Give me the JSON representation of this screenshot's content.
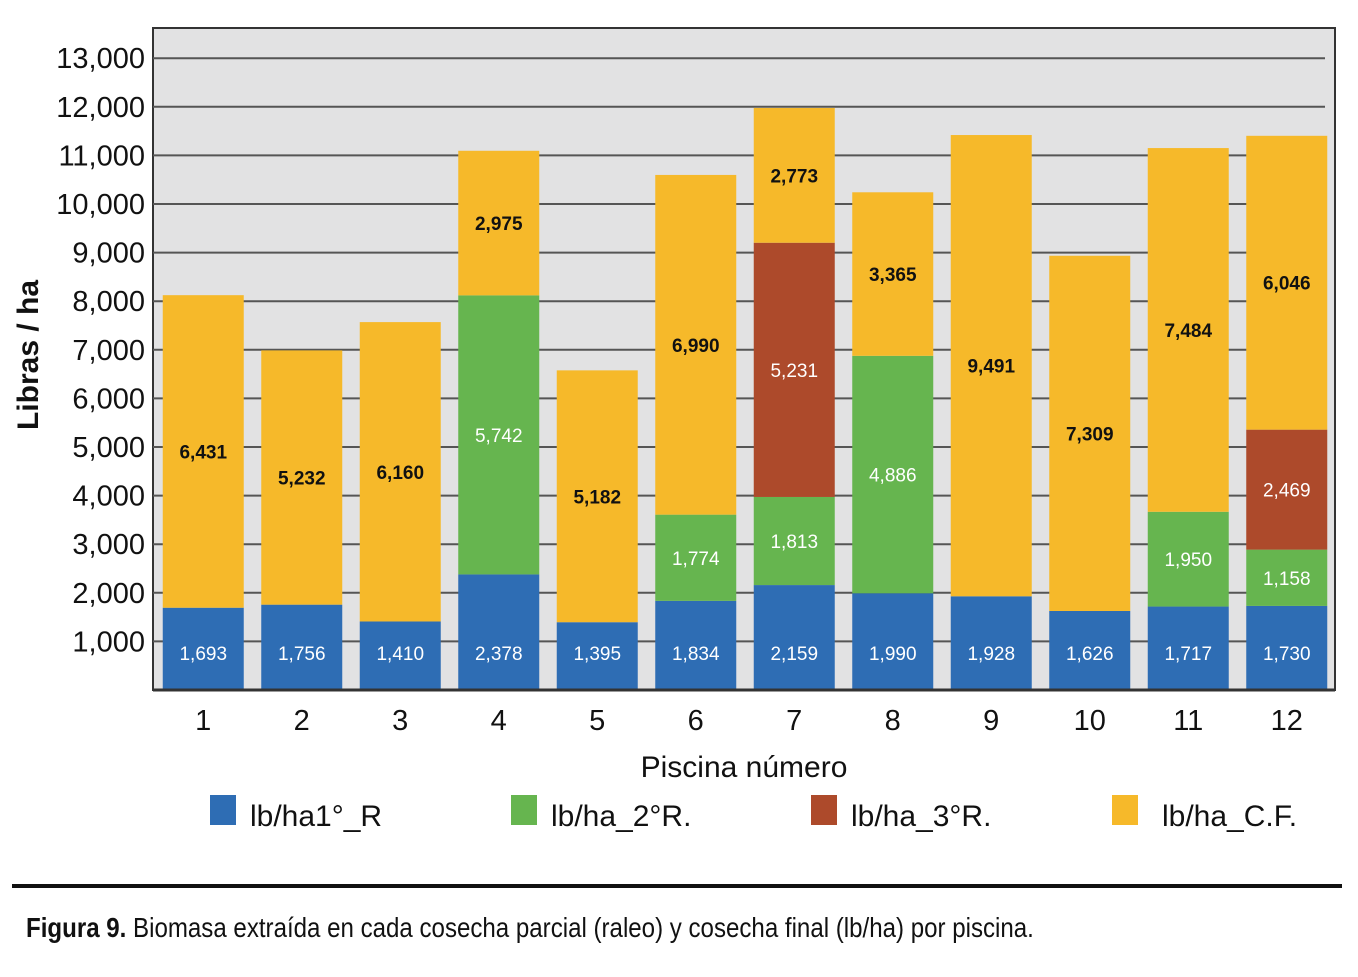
{
  "chart_data": {
    "type": "bar",
    "stacked": true,
    "categories": [
      "1",
      "2",
      "3",
      "4",
      "5",
      "6",
      "7",
      "8",
      "9",
      "10",
      "11",
      "12"
    ],
    "series": [
      {
        "name": "lb/ha1°_R",
        "color": "#2e6db4",
        "values": [
          1693,
          1756,
          1410,
          2378,
          1395,
          1834,
          2159,
          1990,
          1928,
          1626,
          1717,
          1730
        ]
      },
      {
        "name": "lb/ha_2°R.",
        "color": "#66b54f",
        "values": [
          0,
          0,
          0,
          5742,
          0,
          1774,
          1813,
          4886,
          0,
          0,
          1950,
          1158
        ]
      },
      {
        "name": "lb/ha_3°R.",
        "color": "#ad4a2b",
        "values": [
          0,
          0,
          0,
          0,
          0,
          0,
          5231,
          0,
          0,
          0,
          0,
          2469
        ]
      },
      {
        "name": "lb/ha_C.F.",
        "color": "#f6b92a",
        "values": [
          6431,
          5232,
          6160,
          2975,
          5182,
          6990,
          2773,
          3365,
          9491,
          7309,
          7484,
          6046
        ]
      }
    ],
    "value_labels": {
      "lb/ha1°_R": [
        "1,693",
        "1,756",
        "1,410",
        "2,378",
        "1,395",
        "1,834",
        "2,159",
        "1,990",
        "1,928",
        "1,626",
        "1,717",
        "1,730"
      ],
      "lb/ha_2°R.": [
        "",
        "",
        "",
        "5,742",
        "",
        "1,774",
        "1,813",
        "4,886",
        "",
        "",
        "1,950",
        "1,158"
      ],
      "lb/ha_3°R.": [
        "",
        "",
        "",
        "",
        "",
        "",
        "5,231",
        "",
        "",
        "",
        "",
        "2,469"
      ],
      "lb/ha_C.F.": [
        "6,431",
        "5,232",
        "6,160",
        "2,975",
        "5,182",
        "6,990",
        "2,773",
        "3,365",
        "9,491",
        "7,309",
        "7,484",
        "6,046"
      ]
    },
    "xlabel": "Piscina número",
    "ylabel": "Libras / ha",
    "ylim": [
      0,
      13000
    ],
    "yticks": [
      1000,
      2000,
      3000,
      4000,
      5000,
      6000,
      7000,
      8000,
      9000,
      10000,
      11000,
      12000,
      13000
    ],
    "ytick_labels": [
      "1,000",
      "2,000",
      "3,000",
      "4,000",
      "5,000",
      "6,000",
      "7,000",
      "8,000",
      "9,000",
      "10,000",
      "11,000",
      "12,000",
      "13,000"
    ],
    "grid": true,
    "legend_position": "bottom"
  },
  "caption": {
    "label": "Figura 9.",
    "text": " Biomasa extraída en cada cosecha parcial (raleo) y cosecha final (lb/ha) por piscina."
  },
  "colors": {
    "plot_background": "#e2e2e3",
    "gridline": "#555555",
    "label_light": "#ffffff",
    "label_dark": "#111111"
  }
}
